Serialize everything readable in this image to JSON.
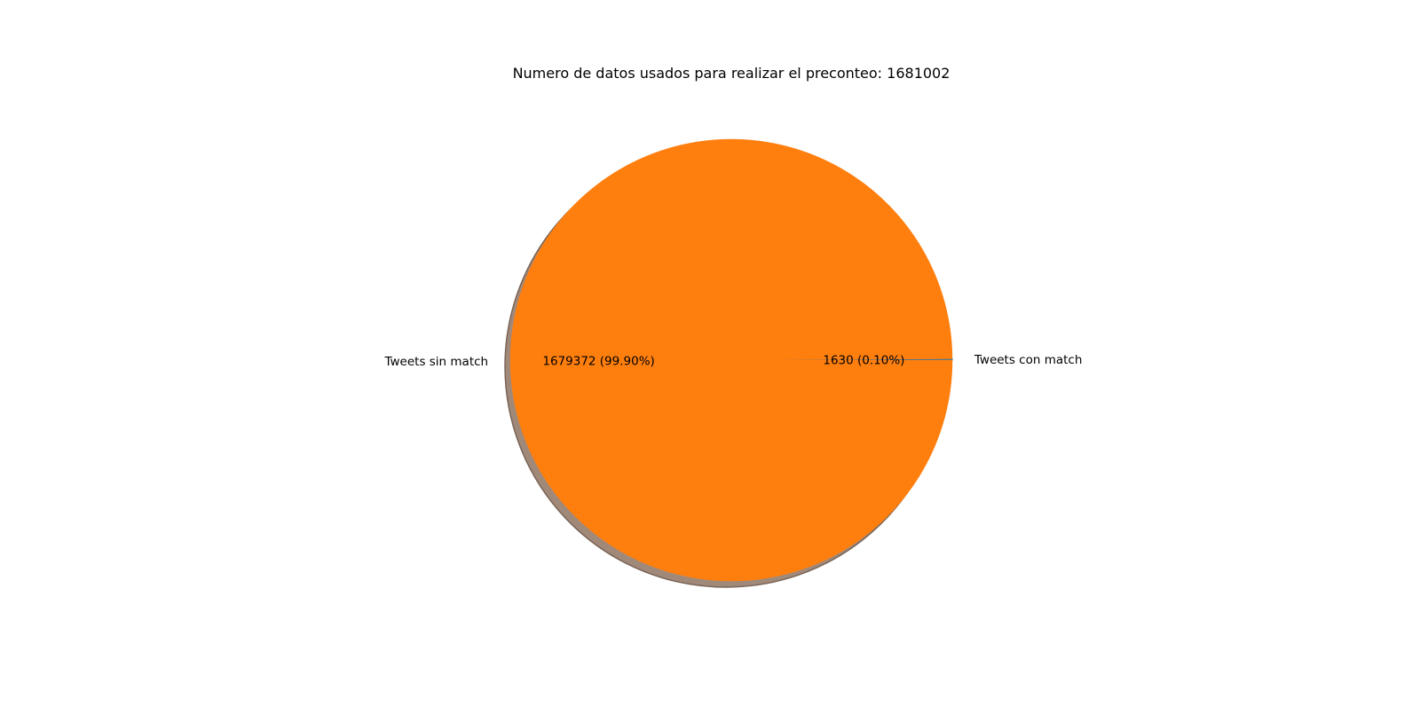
{
  "chart_data": {
    "type": "pie",
    "title": "Numero de datos usados para realizar el preconteo: 1681002",
    "shadow": true,
    "slices": [
      {
        "label": "Tweets con match",
        "value": 1630,
        "display": "1630 (0.10%)",
        "color": "#1f77b4"
      },
      {
        "label": "Tweets sin match",
        "value": 1679372,
        "display": "1679372 (99.90%)",
        "color": "#ff7f0e"
      }
    ]
  }
}
